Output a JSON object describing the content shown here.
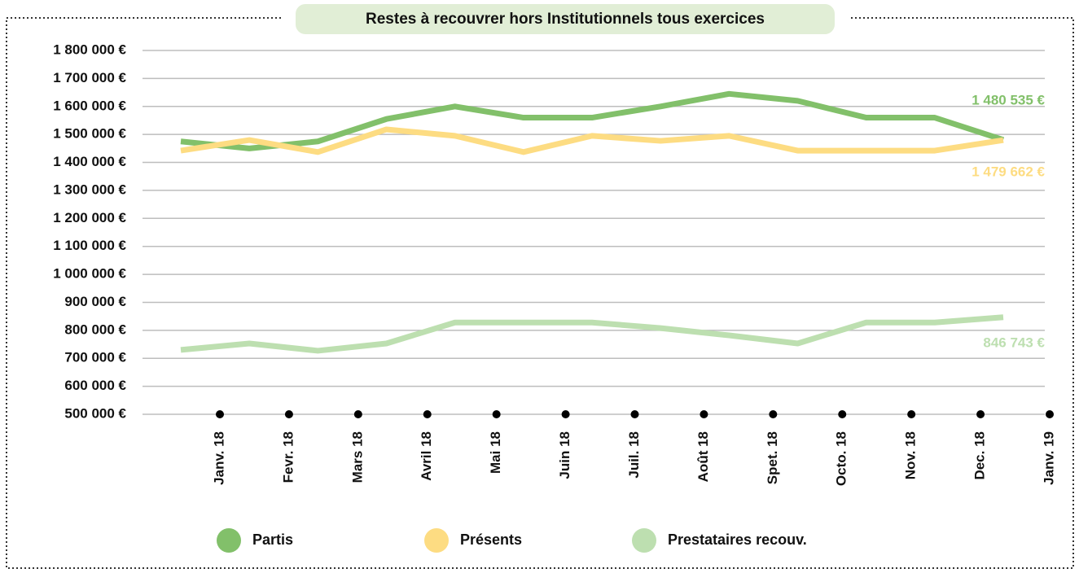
{
  "chart_data": {
    "type": "line",
    "title": "Restes à recouvrer hors Institutionnels tous exercices",
    "categories": [
      "Janv. 18",
      "Fevr. 18",
      "Mars 18",
      "Avril 18",
      "Mai 18",
      "Juin 18",
      "Juil. 18",
      "Août 18",
      "Spet. 18",
      "Octo. 18",
      "Nov. 18",
      "Dec. 18",
      "Janv. 19"
    ],
    "series": [
      {
        "name": "Partis",
        "color": "#82c06a",
        "values": [
          1475000,
          1450000,
          1475000,
          1555000,
          1600000,
          1560000,
          1560000,
          1600000,
          1645000,
          1620000,
          1560000,
          1560000,
          1480535
        ],
        "value_labels": [
          null,
          null,
          null,
          null,
          null,
          null,
          null,
          null,
          null,
          null,
          null,
          null,
          "1 480 535 €"
        ]
      },
      {
        "name": "Présents",
        "color": "#fddc82",
        "values": [
          1442000,
          1480000,
          1437000,
          1518000,
          1495000,
          1437000,
          1495000,
          1477000,
          1495000,
          1442000,
          1442000,
          1442000,
          1479662
        ],
        "value_labels": [
          null,
          null,
          null,
          null,
          null,
          null,
          null,
          null,
          null,
          null,
          null,
          null,
          "1 479 662 €"
        ]
      },
      {
        "name": "Prestataires recouv.",
        "color": "#bddfb0",
        "values": [
          730000,
          753000,
          727000,
          753000,
          828000,
          828000,
          828000,
          808000,
          782000,
          753000,
          828000,
          828000,
          846743
        ],
        "value_labels": [
          null,
          null,
          null,
          null,
          null,
          null,
          null,
          null,
          null,
          null,
          null,
          null,
          "846 743 €"
        ]
      }
    ],
    "ylim": [
      500000,
      1800000
    ],
    "yticks": [
      {
        "value": 500000,
        "label": "500 000 €"
      },
      {
        "value": 600000,
        "label": "600 000 €"
      },
      {
        "value": 700000,
        "label": "700 000 €"
      },
      {
        "value": 800000,
        "label": "800 000 €"
      },
      {
        "value": 900000,
        "label": "900 000 €"
      },
      {
        "value": 1000000,
        "label": "1 000 000 €"
      },
      {
        "value": 1100000,
        "label": "1 100 000 €"
      },
      {
        "value": 1200000,
        "label": "1 200 000 €"
      },
      {
        "value": 1300000,
        "label": "1 300 000 €"
      },
      {
        "value": 1400000,
        "label": "1 400 000 €"
      },
      {
        "value": 1500000,
        "label": "1 500 000 €"
      },
      {
        "value": 1600000,
        "label": "1 600 000 €"
      },
      {
        "value": 1700000,
        "label": "1 700 000 €"
      },
      {
        "value": 1800000,
        "label": "1 800 000 €"
      }
    ],
    "grid": true
  }
}
